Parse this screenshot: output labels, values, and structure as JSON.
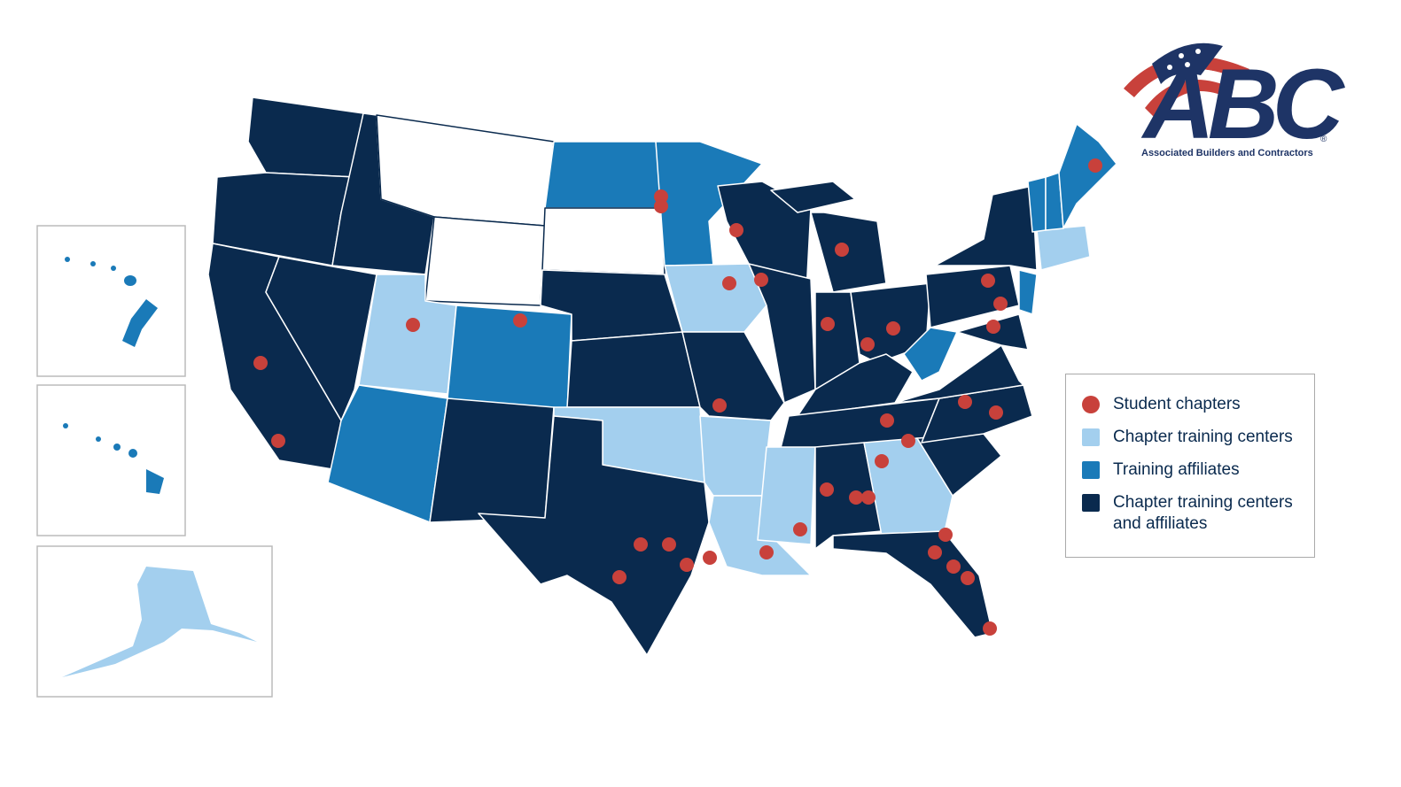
{
  "logo": {
    "text": "ABC",
    "registered": "®",
    "tagline": "Associated Builders and Contractors"
  },
  "legend": {
    "items": [
      {
        "label": "Student chapters",
        "color": "#c8413b",
        "shape": "circle"
      },
      {
        "label": "Chapter training centers",
        "color": "#a3cfee",
        "shape": "square"
      },
      {
        "label": "Training affiliates",
        "color": "#1a7ab8",
        "shape": "square"
      },
      {
        "label": "Chapter training centers and affiliates",
        "color": "#0a2a4e",
        "shape": "square"
      }
    ]
  }
}
